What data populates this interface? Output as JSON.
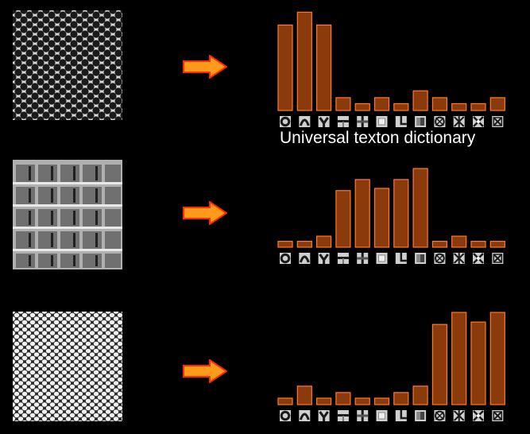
{
  "caption": "Universal texton dictionary",
  "colors": {
    "background": "#000000",
    "bar_fill": "#8a3a0b",
    "bar_stroke": "#ff7a2a",
    "arrow_fill": "#ff9a1a",
    "arrow_stroke": "#ff2a00"
  },
  "texton_icons": [
    "ring",
    "arch",
    "chevron",
    "stripe",
    "cross",
    "square",
    "corner",
    "square-dark",
    "star",
    "cross-star",
    "x-star",
    "x-square"
  ],
  "chart_data": [
    {
      "type": "bar",
      "categories": [
        "1",
        "2",
        "3",
        "4",
        "5",
        "6",
        "7",
        "8",
        "9",
        "10",
        "11",
        "12"
      ],
      "values": [
        100,
        115,
        100,
        15,
        8,
        15,
        8,
        23,
        15,
        8,
        8,
        15
      ],
      "ylim": [
        0,
        120
      ]
    },
    {
      "type": "bar",
      "categories": [
        "1",
        "2",
        "3",
        "4",
        "5",
        "6",
        "7",
        "8",
        "9",
        "10",
        "11",
        "12"
      ],
      "values": [
        8,
        8,
        15,
        77,
        92,
        80,
        92,
        107,
        8,
        15,
        8,
        8
      ],
      "ylim": [
        0,
        120
      ]
    },
    {
      "type": "bar",
      "categories": [
        "1",
        "2",
        "3",
        "4",
        "5",
        "6",
        "7",
        "8",
        "9",
        "10",
        "11",
        "12"
      ],
      "values": [
        8,
        23,
        8,
        15,
        8,
        8,
        15,
        23,
        100,
        115,
        103,
        115
      ],
      "ylim": [
        0,
        120
      ]
    }
  ]
}
